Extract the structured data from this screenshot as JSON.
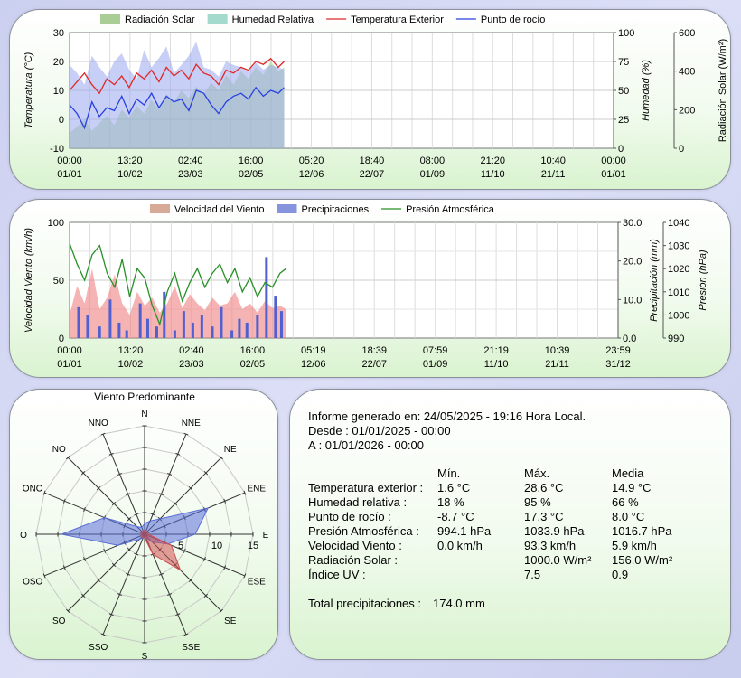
{
  "chart_data": [
    {
      "type": "line",
      "legend": [
        {
          "label": "Radiación Solar",
          "color": "#a0c888"
        },
        {
          "label": "Humedad Relativa",
          "color": "#9ad6c8"
        },
        {
          "label": "Temperatura Exterior",
          "color": "#e02828"
        },
        {
          "label": "Punto de rocío",
          "color": "#2840e0"
        }
      ],
      "y_left": {
        "label": "Temperatura (°C)",
        "range": [
          -10,
          30
        ],
        "ticks": [
          "30",
          "20",
          "10",
          "0",
          "-10"
        ]
      },
      "y_right1": {
        "label": "Humedad (%)",
        "range": [
          0,
          100
        ],
        "ticks": [
          "100",
          "75",
          "50",
          "25",
          "0"
        ]
      },
      "y_right2": {
        "label": "Radiación Solar (W/m²)",
        "range": [
          0,
          600
        ],
        "ticks": [
          "600",
          "400",
          "200",
          "0"
        ]
      },
      "x_ticks": [
        {
          "time": "00:00",
          "date": "01/01"
        },
        {
          "time": "13:20",
          "date": "10/02"
        },
        {
          "time": "02:40",
          "date": "23/03"
        },
        {
          "time": "16:00",
          "date": "02/05"
        },
        {
          "time": "05:20",
          "date": "12/06"
        },
        {
          "time": "18:40",
          "date": "22/07"
        },
        {
          "time": "08:00",
          "date": "01/09"
        },
        {
          "time": "21:20",
          "date": "11/10"
        },
        {
          "time": "10:40",
          "date": "21/11"
        },
        {
          "time": "00:00",
          "date": "01/01"
        }
      ],
      "x_range_days": [
        0,
        365
      ],
      "data_end_day": 144,
      "series": [
        {
          "name": "Temperatura Exterior",
          "x_days": [
            0,
            5,
            10,
            15,
            20,
            25,
            30,
            35,
            40,
            45,
            50,
            55,
            60,
            65,
            70,
            75,
            80,
            85,
            90,
            95,
            100,
            105,
            110,
            115,
            120,
            125,
            130,
            135,
            140,
            144
          ],
          "values": [
            10,
            13,
            16,
            12,
            9,
            14,
            12,
            15,
            11,
            16,
            14,
            17,
            13,
            18,
            15,
            17,
            14,
            19,
            16,
            15,
            12,
            17,
            16,
            18,
            17,
            20,
            19,
            21,
            18,
            20
          ]
        },
        {
          "name": "Punto de rocío",
          "x_days": [
            0,
            5,
            10,
            15,
            20,
            25,
            30,
            35,
            40,
            45,
            50,
            55,
            60,
            65,
            70,
            75,
            80,
            85,
            90,
            95,
            100,
            105,
            110,
            115,
            120,
            125,
            130,
            135,
            140,
            144
          ],
          "values": [
            5,
            2,
            -3,
            6,
            1,
            4,
            3,
            8,
            2,
            7,
            5,
            9,
            4,
            8,
            6,
            7,
            3,
            10,
            9,
            5,
            2,
            6,
            8,
            9,
            7,
            11,
            8,
            10,
            9,
            11
          ]
        },
        {
          "name": "Humedad Relativa",
          "x_days": [
            0,
            5,
            10,
            15,
            20,
            25,
            30,
            35,
            40,
            45,
            50,
            55,
            60,
            65,
            70,
            75,
            80,
            85,
            90,
            95,
            100,
            105,
            110,
            115,
            120,
            125,
            130,
            135,
            140,
            144
          ],
          "values": [
            72,
            65,
            55,
            80,
            70,
            62,
            75,
            82,
            68,
            60,
            85,
            70,
            78,
            88,
            65,
            72,
            80,
            92,
            70,
            68,
            62,
            75,
            72,
            70,
            66,
            74,
            68,
            72,
            70,
            68
          ]
        },
        {
          "name": "Radiación Solar",
          "x_days": [
            0,
            5,
            10,
            15,
            20,
            25,
            30,
            35,
            40,
            45,
            50,
            55,
            60,
            65,
            70,
            75,
            80,
            85,
            90,
            95,
            100,
            105,
            110,
            115,
            120,
            125,
            130,
            135,
            140,
            144
          ],
          "values": [
            80,
            110,
            150,
            90,
            130,
            170,
            120,
            200,
            160,
            220,
            180,
            250,
            200,
            280,
            240,
            300,
            260,
            320,
            280,
            340,
            300,
            380,
            330,
            400,
            360,
            420,
            380,
            450,
            400,
            420
          ]
        }
      ]
    },
    {
      "type": "line",
      "legend": [
        {
          "label": "Velocidad del Viento",
          "color": "#d4a08c"
        },
        {
          "label": "Precipitaciones",
          "color": "#7888d8"
        },
        {
          "label": "Presión Atmosférica",
          "color": "#289028"
        }
      ],
      "y_left": {
        "label": "Velocidad Viento (km/h)",
        "range": [
          0,
          100
        ],
        "ticks": [
          "100",
          "50",
          "0"
        ]
      },
      "y_right1": {
        "label": "Precipitación (mm)",
        "range": [
          0,
          30
        ],
        "ticks": [
          "30.0",
          "20.0",
          "10.0",
          "0.0"
        ]
      },
      "y_right2": {
        "label": "Presión (hPa)",
        "range": [
          990,
          1040
        ],
        "ticks": [
          "1040",
          "1030",
          "1020",
          "1010",
          "1000",
          "990"
        ]
      },
      "x_ticks": [
        {
          "time": "00:00",
          "date": "01/01"
        },
        {
          "time": "13:20",
          "date": "10/02"
        },
        {
          "time": "02:40",
          "date": "23/03"
        },
        {
          "time": "16:00",
          "date": "02/05"
        },
        {
          "time": "05:19",
          "date": "12/06"
        },
        {
          "time": "18:39",
          "date": "22/07"
        },
        {
          "time": "07:59",
          "date": "01/09"
        },
        {
          "time": "21:19",
          "date": "11/10"
        },
        {
          "time": "10:39",
          "date": "21/11"
        },
        {
          "time": "23:59",
          "date": "31/12"
        }
      ],
      "x_range_days": [
        0,
        365
      ],
      "data_end_day": 144,
      "series": [
        {
          "name": "Velocidad del Viento",
          "x_days": [
            0,
            5,
            10,
            15,
            20,
            25,
            30,
            35,
            40,
            45,
            50,
            55,
            60,
            65,
            70,
            75,
            80,
            85,
            90,
            95,
            100,
            105,
            110,
            115,
            120,
            125,
            130,
            135,
            140,
            144
          ],
          "values": [
            20,
            45,
            30,
            60,
            25,
            35,
            55,
            30,
            20,
            40,
            28,
            35,
            22,
            30,
            45,
            26,
            38,
            30,
            24,
            35,
            28,
            30,
            40,
            25,
            30,
            22,
            32,
            26,
            28,
            25
          ]
        },
        {
          "name": "Precipitaciones",
          "x_days": [
            6,
            12,
            20,
            27,
            33,
            38,
            47,
            52,
            58,
            63,
            70,
            76,
            82,
            88,
            95,
            101,
            108,
            113,
            118,
            125,
            131,
            137,
            141
          ],
          "values": [
            8.0,
            6.0,
            3.0,
            10.0,
            4.0,
            2.0,
            9.0,
            5.0,
            3.0,
            12.0,
            2.0,
            7.0,
            4.0,
            6.0,
            3.0,
            8.0,
            2.0,
            5.0,
            4.0,
            6.0,
            21.0,
            11.0,
            7.0
          ]
        },
        {
          "name": "Presión Atmosférica",
          "x_days": [
            0,
            5,
            10,
            15,
            20,
            25,
            30,
            35,
            40,
            45,
            50,
            55,
            60,
            65,
            70,
            75,
            80,
            85,
            90,
            95,
            100,
            105,
            110,
            115,
            120,
            125,
            130,
            135,
            140,
            144
          ],
          "values": [
            1031,
            1022,
            1015,
            1026,
            1030,
            1018,
            1012,
            1024,
            1008,
            1020,
            1016,
            1004,
            996,
            1010,
            1018,
            1006,
            1014,
            1020,
            1012,
            1018,
            1022,
            1014,
            1020,
            1010,
            1016,
            1008,
            1014,
            1012,
            1018,
            1020
          ]
        }
      ]
    },
    {
      "type": "radar",
      "title": "Viento Predominante",
      "directions": [
        "N",
        "NNE",
        "NE",
        "ENE",
        "E",
        "ESE",
        "SE",
        "SSE",
        "S",
        "SSO",
        "SO",
        "OSO",
        "O",
        "ONO",
        "NO",
        "NNO"
      ],
      "radial_ticks": [
        "5",
        "10",
        "15"
      ],
      "r_max": 15,
      "series": [
        {
          "color": "#5a6ed8",
          "values": [
            1.5,
            2.0,
            3.0,
            9.5,
            7.0,
            3.5,
            1.5,
            0.5,
            0.5,
            0.5,
            1.0,
            4.0,
            11.5,
            6.0,
            1.5,
            1.0
          ]
        },
        {
          "color": "#d05050",
          "values": [
            0.5,
            0.5,
            0.5,
            0.5,
            0.5,
            4.0,
            7.0,
            3.0,
            0.5,
            0.5,
            0.5,
            0.5,
            0.5,
            0.5,
            0.5,
            0.5
          ]
        }
      ]
    }
  ],
  "report": {
    "generated": "Informe generado en: 24/05/2025 - 19:16 Hora Local.",
    "from": "Desde : 01/01/2025 - 00:00",
    "to": "A : 01/01/2026 - 00:00",
    "headers": [
      "Mín.",
      "Máx.",
      "Media"
    ],
    "rows": [
      {
        "label": "Temperatura exterior :",
        "min": "1.6 °C",
        "max": "28.6 °C",
        "avg": "14.9 °C"
      },
      {
        "label": "Humedad relativa :",
        "min": "18 %",
        "max": "95 %",
        "avg": "66 %"
      },
      {
        "label": "Punto de rocío :",
        "min": "-8.7 °C",
        "max": "17.3 °C",
        "avg": "8.0 °C"
      },
      {
        "label": "Presión Atmosférica :",
        "min": "994.1 hPa",
        "max": "1033.9 hPa",
        "avg": "1016.7 hPa"
      },
      {
        "label": "Velocidad Viento :",
        "min": "0.0 km/h",
        "max": "93.3 km/h",
        "avg": "5.9 km/h"
      },
      {
        "label": "Radiación Solar :",
        "min": "",
        "max": "1000.0 W/m²",
        "avg": "156.0 W/m²"
      },
      {
        "label": "Índice UV :",
        "min": "",
        "max": "7.5",
        "avg": "0.9"
      }
    ],
    "total_label": "Total precipitaciones :",
    "total_value": "174.0 mm"
  }
}
